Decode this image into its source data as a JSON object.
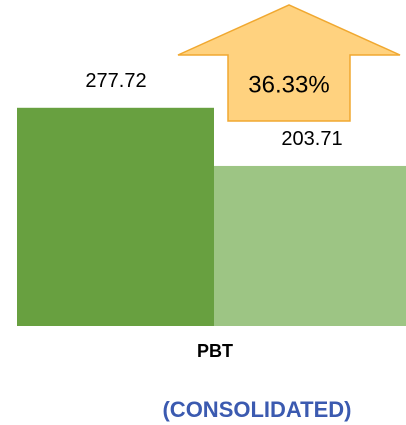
{
  "chart_data": {
    "type": "bar",
    "categories": [
      "PBT"
    ],
    "series": [
      {
        "color": "#68a040",
        "values": [
          277.72
        ]
      },
      {
        "color": "#9dc584",
        "values": [
          203.71
        ]
      }
    ],
    "ylim": [
      0,
      280
    ],
    "annotation": {
      "text": "36.33%",
      "color": "#ffd27f"
    },
    "subtitle": "(CONSOLIDATED)"
  }
}
